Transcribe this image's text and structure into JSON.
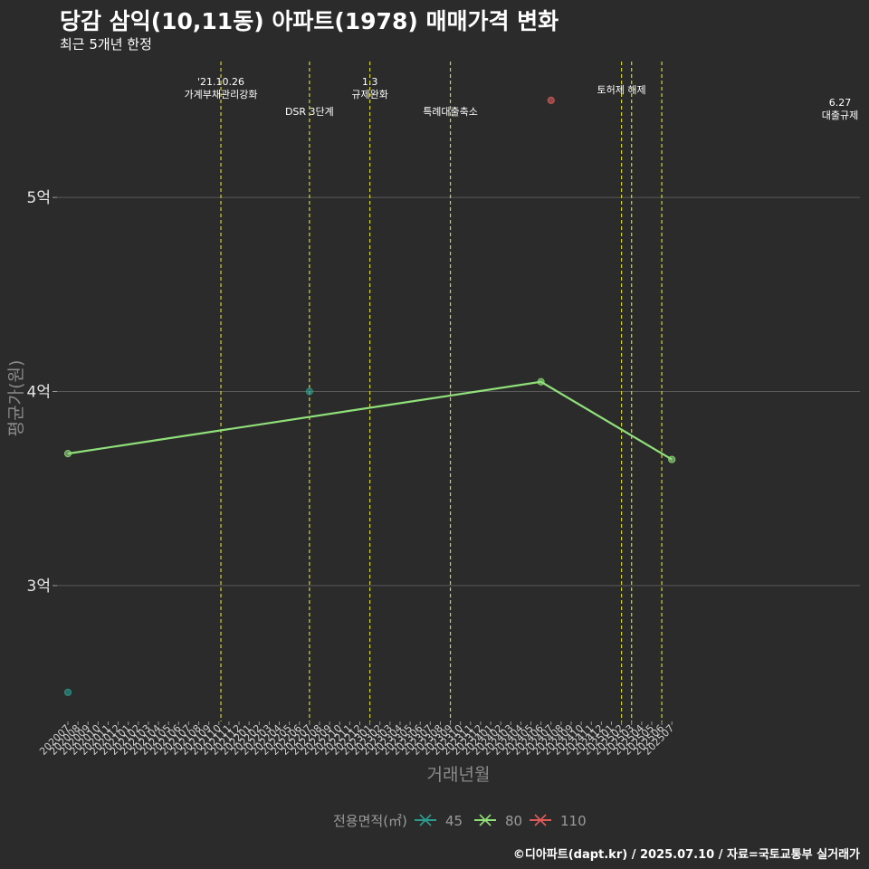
{
  "header": {
    "title": "당감 삼익(10,11동) 아파트(1978) 매매가격 변화",
    "subtitle": "최근 5개년 한정"
  },
  "caption": "©디아파트(dapt.kr) / 2025.07.10 / 자료=국토교통부 실거래가",
  "colors": {
    "background": "#2b2b2b",
    "gridline": "#5a5a5a",
    "event_line": "#d4d42a",
    "series_45": "#2a9d8f",
    "series_80": "#90e07a",
    "series_110": "#e05a5a"
  },
  "chart_data": {
    "type": "line",
    "title": "당감 삼익(10,11동) 아파트(1978) 매매가격 변화",
    "subtitle": "최근 5개년 한정",
    "xlabel": "거래년월",
    "ylabel": "평균가(원)",
    "ylim": [
      2.3,
      5.7
    ],
    "y_ticks": [
      {
        "value": 3,
        "label": "3억"
      },
      {
        "value": 4,
        "label": "4억"
      },
      {
        "value": 5,
        "label": "5억"
      }
    ],
    "categories": [
      "202007",
      "202008",
      "202009",
      "202010",
      "202011",
      "202012",
      "202101",
      "202102",
      "202103",
      "202104",
      "202105",
      "202106",
      "202107",
      "202108",
      "202109",
      "202110",
      "202111",
      "202112",
      "202201",
      "202202",
      "202203",
      "202204",
      "202205",
      "202206",
      "202207",
      "202208",
      "202209",
      "202210",
      "202211",
      "202212",
      "202301",
      "202302",
      "202303",
      "202304",
      "202305",
      "202306",
      "202307",
      "202308",
      "202309",
      "202310",
      "202311",
      "202312",
      "202401",
      "202402",
      "202403",
      "202404",
      "202405",
      "202406",
      "202407",
      "202408",
      "202409",
      "202410",
      "202411",
      "202412",
      "202501",
      "202502",
      "202503",
      "202504",
      "202505",
      "202506",
      "202507"
    ],
    "legend_title": "전용면적(㎡)",
    "legend_position": "bottom",
    "series": [
      {
        "name": "45",
        "color": "#2a9d8f",
        "points": [
          {
            "x": "202007",
            "y": 2.45
          },
          {
            "x": "202207",
            "y": 4.0
          }
        ],
        "line": false
      },
      {
        "name": "80",
        "color": "#90e07a",
        "points": [
          {
            "x": "202007",
            "y": 3.68
          },
          {
            "x": "202406",
            "y": 4.05
          },
          {
            "x": "202507",
            "y": 3.65
          }
        ],
        "line": true
      },
      {
        "name": "110",
        "color": "#e05a5a",
        "points": [
          {
            "x": "202407",
            "y": 5.5
          }
        ],
        "line": false
      }
    ],
    "events": [
      {
        "x": 202110.2,
        "lines": [
          "'21.10.26",
          "가계부채관리강화"
        ],
        "row": "top"
      },
      {
        "x": 202207,
        "lines": [
          "DSR 3단계"
        ],
        "row": "low"
      },
      {
        "x": 202301,
        "lines": [
          "1.3",
          "규제완화"
        ],
        "row": "top"
      },
      {
        "x": 202309,
        "lines": [
          "특례대출축소"
        ],
        "row": "low"
      },
      {
        "x": 202502,
        "lines": [
          "토허제 해제"
        ],
        "row": "mid"
      },
      {
        "x": 202503,
        "lines": [],
        "row": "mid"
      },
      {
        "x": 202506,
        "lines": [
          "6.27",
          "대출규제"
        ],
        "row": "right"
      }
    ]
  }
}
